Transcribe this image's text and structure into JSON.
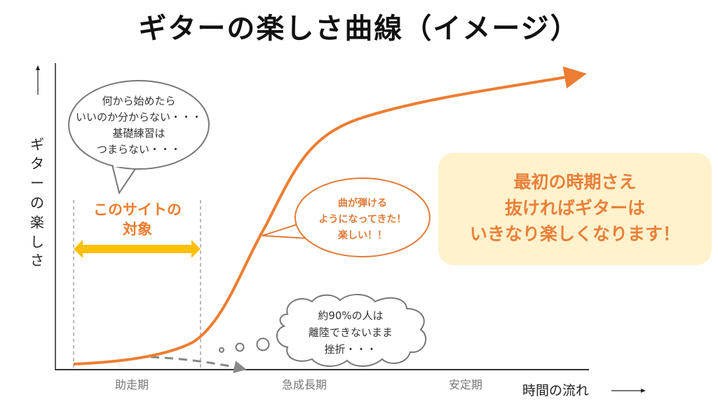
{
  "title": "ギターの楽しさ曲線（イメージ）",
  "y_axis_label": [
    "ギ",
    "タ",
    "ー",
    "の",
    "楽",
    "し",
    "さ"
  ],
  "x_axis_label": "時間の流れ",
  "phases": [
    "助走期",
    "急成長期",
    "安定期"
  ],
  "speech_bubble": [
    "何から始めたら",
    "いいのか分からない・・・",
    "基礎練習は",
    "つまらない・・・"
  ],
  "target_label": [
    "このサイトの",
    "対象"
  ],
  "happy_bubble": [
    "曲が弾ける",
    "ようになってきた！",
    "楽しい！！"
  ],
  "thought_cloud": [
    "約90%の人は",
    "離陸できないまま",
    "挫折・・・"
  ],
  "message_box": [
    "最初の時期さえ",
    "抜ければギターは",
    "いきなり楽しくなります！"
  ],
  "colors": {
    "curve": "#ED7D31",
    "target_arrow": "#FFC000",
    "message_bg": "#FFF2CC",
    "text_orange": "#ED7D31"
  }
}
